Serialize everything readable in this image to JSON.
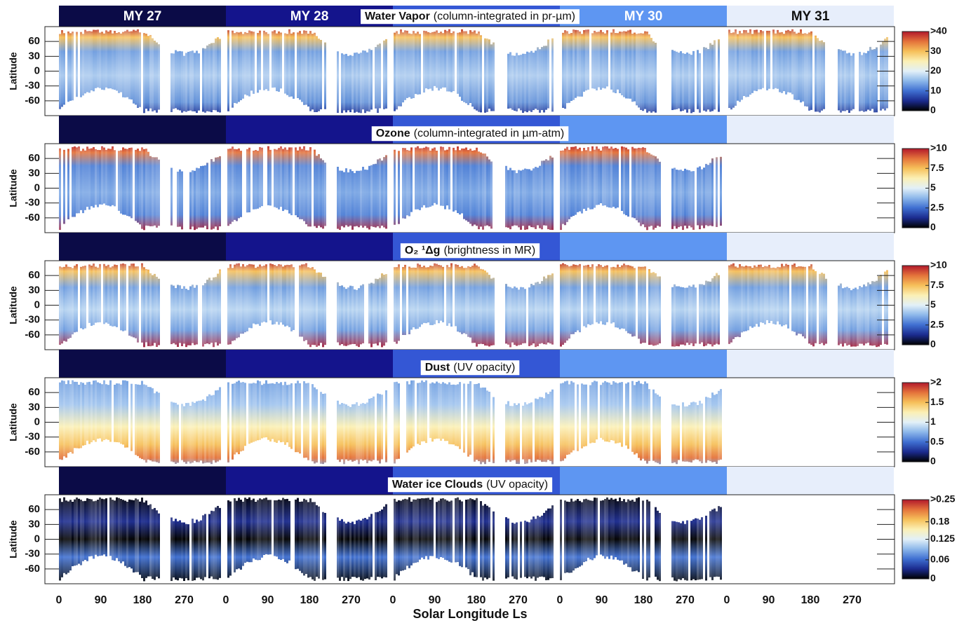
{
  "figure": {
    "years": [
      "MY 27",
      "MY 28",
      null,
      "MY 30",
      "MY 31"
    ],
    "year_colors": [
      "#0b0b47",
      "#14148c",
      "#3457d5",
      "#5e96f2",
      "#e7eefb"
    ],
    "xlabel": "Solar Longitude Ls",
    "xlim": [
      0,
      1800
    ],
    "xticks": [
      {
        "value": 0,
        "label": "0"
      },
      {
        "value": 90,
        "label": "90"
      },
      {
        "value": 180,
        "label": "180"
      },
      {
        "value": 270,
        "label": "270"
      },
      {
        "value": 360,
        "label": "0"
      },
      {
        "value": 450,
        "label": "90"
      },
      {
        "value": 540,
        "label": "180"
      },
      {
        "value": 630,
        "label": "270"
      },
      {
        "value": 720,
        "label": "0"
      },
      {
        "value": 810,
        "label": "90"
      },
      {
        "value": 900,
        "label": "180"
      },
      {
        "value": 990,
        "label": "270"
      },
      {
        "value": 1080,
        "label": "0"
      },
      {
        "value": 1170,
        "label": "90"
      },
      {
        "value": 1260,
        "label": "180"
      },
      {
        "value": 1350,
        "label": "270"
      },
      {
        "value": 1440,
        "label": "0"
      },
      {
        "value": 1530,
        "label": "90"
      },
      {
        "value": 1620,
        "label": "180"
      },
      {
        "value": 1710,
        "label": "270"
      }
    ],
    "colormap": [
      "#000000",
      "#1b2b8e",
      "#3f6fd1",
      "#8cb7ea",
      "#e2f0f8",
      "#fbf0b5",
      "#f6c05a",
      "#e4733b",
      "#b2182b"
    ]
  },
  "chart_data": [
    {
      "type": "heatmap",
      "title_bold": "Water Vapor",
      "title": "(column-integrated in pr-µm)",
      "ylabel": "Latitude",
      "ylim": [
        -90,
        90
      ],
      "yticks": [
        -60,
        -30,
        0,
        30,
        60
      ],
      "clim": [
        0,
        40
      ],
      "cticks": [
        0,
        10,
        20,
        30,
        {
          "value": 40,
          "label": ">40"
        }
      ]
    },
    {
      "type": "heatmap",
      "title_bold": "Ozone",
      "title": "(column-integrated in µm-atm)",
      "ylabel": "Latitude",
      "ylim": [
        -90,
        90
      ],
      "yticks": [
        -60,
        -30,
        0,
        30,
        60
      ],
      "clim": [
        0,
        10
      ],
      "cticks": [
        0,
        2.5,
        5,
        7.5,
        {
          "value": 10,
          "label": ">10"
        }
      ]
    },
    {
      "type": "heatmap",
      "title_bold": "O₂ ¹Δg",
      "title": "(brightness in MR)",
      "ylabel": "Latitude",
      "ylim": [
        -90,
        90
      ],
      "yticks": [
        -60,
        -30,
        0,
        30,
        60
      ],
      "clim": [
        0,
        10
      ],
      "cticks": [
        0,
        2.5,
        5,
        7.5,
        {
          "value": 10,
          "label": ">10"
        }
      ]
    },
    {
      "type": "heatmap",
      "title_bold": "Dust",
      "title": "(UV opacity)",
      "ylabel": "Latitude",
      "ylim": [
        -90,
        90
      ],
      "yticks": [
        -60,
        -30,
        0,
        30,
        60
      ],
      "clim": [
        0,
        2
      ],
      "cticks": [
        0,
        0.5,
        1,
        1.5,
        {
          "value": 2,
          "label": ">2"
        }
      ]
    },
    {
      "type": "heatmap",
      "title_bold": "Water ice Clouds",
      "title": "(UV opacity)",
      "ylabel": "Latitude",
      "ylim": [
        -90,
        90
      ],
      "yticks": [
        -60,
        -30,
        0,
        30,
        60
      ],
      "clim": [
        0,
        0.25
      ],
      "cticks": [
        0,
        0.06,
        0.125,
        0.18,
        {
          "value": 0.25,
          "label": ">0.25"
        }
      ]
    }
  ]
}
